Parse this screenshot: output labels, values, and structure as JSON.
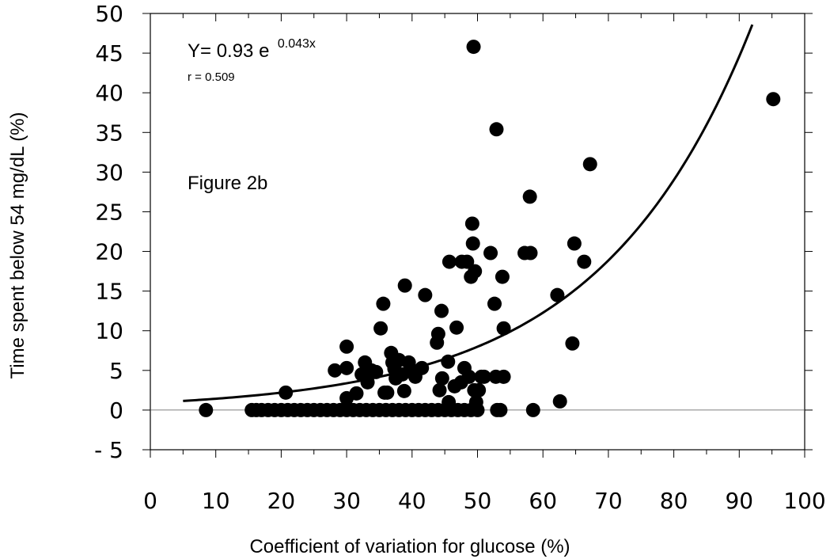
{
  "chart_data": {
    "type": "scatter",
    "xlabel": "Coefficient of variation for glucose (%)",
    "ylabel": "Time spent below 54 mg/dL (%)",
    "xlim": [
      0,
      100
    ],
    "ylim": [
      -5,
      50
    ],
    "x_ticks": [
      0,
      10,
      20,
      30,
      40,
      50,
      60,
      70,
      80,
      90,
      100
    ],
    "y_ticks": [
      {
        "value": -5,
        "label": "- 5"
      },
      {
        "value": 0,
        "label": "0"
      },
      {
        "value": 5,
        "label": "5"
      },
      {
        "value": 10,
        "label": "10"
      },
      {
        "value": 15,
        "label": "15"
      },
      {
        "value": 20,
        "label": "20"
      },
      {
        "value": 25,
        "label": "25"
      },
      {
        "value": 30,
        "label": "30"
      },
      {
        "value": 35,
        "label": "35"
      },
      {
        "value": 40,
        "label": "40"
      },
      {
        "value": 45,
        "label": "45"
      },
      {
        "value": 50,
        "label": "50"
      }
    ],
    "grid": false,
    "zero_line": true,
    "annotations": {
      "equation_main": "Y= 0.93 e",
      "equation_exponent": "0.043x",
      "r_value": "r = 0.509",
      "figure_label": "Figure 2b"
    },
    "fit_curve": {
      "a": 0.93,
      "b": 0.043,
      "x_range": [
        5,
        92
      ]
    },
    "points": [
      [
        8.5,
        0
      ],
      [
        15.5,
        0
      ],
      [
        16.2,
        0
      ],
      [
        17,
        0
      ],
      [
        18,
        0
      ],
      [
        19,
        0
      ],
      [
        20,
        0
      ],
      [
        21,
        0
      ],
      [
        22,
        0
      ],
      [
        23,
        0
      ],
      [
        24,
        0
      ],
      [
        25,
        0
      ],
      [
        26,
        0
      ],
      [
        27,
        0
      ],
      [
        28,
        0
      ],
      [
        29,
        0
      ],
      [
        30,
        0
      ],
      [
        31,
        0
      ],
      [
        32,
        0
      ],
      [
        33,
        0
      ],
      [
        34,
        0
      ],
      [
        35,
        0
      ],
      [
        36,
        0
      ],
      [
        37,
        0
      ],
      [
        38,
        0
      ],
      [
        39,
        0
      ],
      [
        40,
        0
      ],
      [
        41,
        0
      ],
      [
        42,
        0
      ],
      [
        43,
        0
      ],
      [
        44,
        0
      ],
      [
        45,
        0
      ],
      [
        46,
        0
      ],
      [
        47,
        0
      ],
      [
        48,
        0
      ],
      [
        49,
        0
      ],
      [
        50,
        0
      ],
      [
        53,
        0
      ],
      [
        53.5,
        0
      ],
      [
        58.5,
        0
      ],
      [
        20.7,
        2.2
      ],
      [
        28.2,
        5
      ],
      [
        30,
        8
      ],
      [
        30,
        5.3
      ],
      [
        30,
        1.5
      ],
      [
        31.5,
        2.1
      ],
      [
        32.3,
        4.5
      ],
      [
        32.8,
        6
      ],
      [
        33.2,
        3.5
      ],
      [
        33.8,
        5
      ],
      [
        34.5,
        4.8
      ],
      [
        35.2,
        10.3
      ],
      [
        35.6,
        13.4
      ],
      [
        35.8,
        2.2
      ],
      [
        36.2,
        2.2
      ],
      [
        36.8,
        7.2
      ],
      [
        37,
        6
      ],
      [
        37.3,
        5.2
      ],
      [
        37.5,
        4
      ],
      [
        38,
        6.3
      ],
      [
        38.5,
        4.5
      ],
      [
        38.9,
        15.7
      ],
      [
        38.8,
        2.4
      ],
      [
        39.5,
        6
      ],
      [
        40,
        5
      ],
      [
        40.5,
        4.2
      ],
      [
        41.5,
        5.3
      ],
      [
        42,
        14.5
      ],
      [
        43.8,
        8.5
      ],
      [
        44,
        9.6
      ],
      [
        44.2,
        2.5
      ],
      [
        44.5,
        12.5
      ],
      [
        44.6,
        4
      ],
      [
        45.5,
        6.1
      ],
      [
        45.6,
        1
      ],
      [
        45.7,
        18.7
      ],
      [
        46.5,
        3
      ],
      [
        46.8,
        10.4
      ],
      [
        47.5,
        3.5
      ],
      [
        47.6,
        18.7
      ],
      [
        48,
        5.3
      ],
      [
        48.4,
        18.7
      ],
      [
        48.7,
        4.2
      ],
      [
        49,
        16.8
      ],
      [
        49.3,
        21
      ],
      [
        49.2,
        23.5
      ],
      [
        49.6,
        17.5
      ],
      [
        49.5,
        2.5
      ],
      [
        49.8,
        1
      ],
      [
        50.2,
        2.5
      ],
      [
        50.6,
        4.2
      ],
      [
        51,
        4.2
      ],
      [
        49.4,
        45.8
      ],
      [
        52,
        19.8
      ],
      [
        52.6,
        13.4
      ],
      [
        52.8,
        4.2
      ],
      [
        52.9,
        35.4
      ],
      [
        53.8,
        16.8
      ],
      [
        54,
        10.3
      ],
      [
        54,
        4.2
      ],
      [
        57.2,
        19.8
      ],
      [
        58.1,
        19.8
      ],
      [
        58,
        26.9
      ],
      [
        62.2,
        14.5
      ],
      [
        62.6,
        1.1
      ],
      [
        64.5,
        8.4
      ],
      [
        64.8,
        21
      ],
      [
        66.3,
        18.7
      ],
      [
        67.2,
        31
      ],
      [
        95.2,
        39.2
      ]
    ]
  }
}
